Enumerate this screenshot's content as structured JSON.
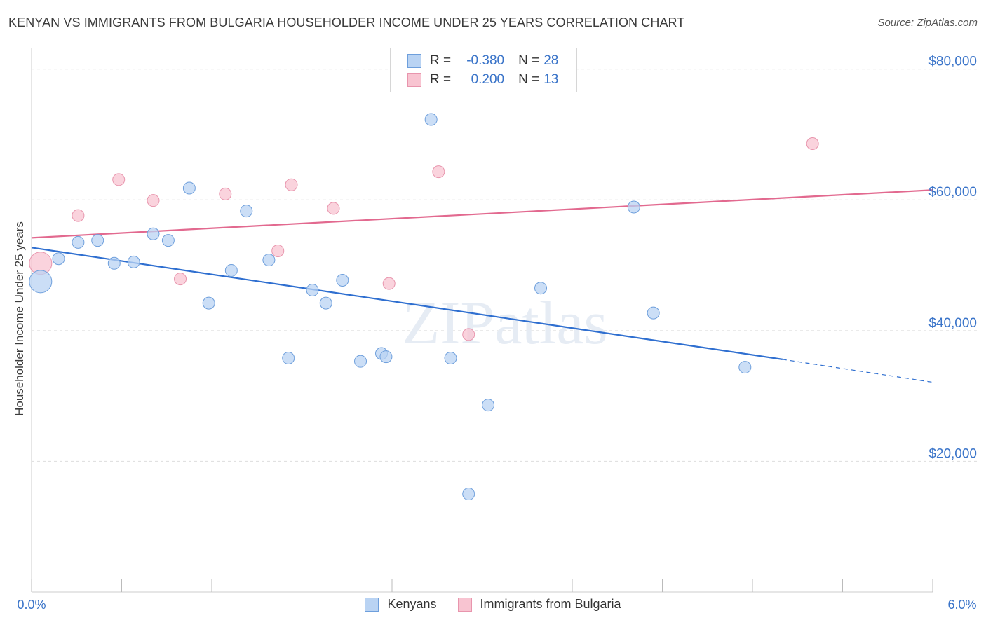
{
  "header": {
    "title": "KENYAN VS IMMIGRANTS FROM BULGARIA HOUSEHOLDER INCOME UNDER 25 YEARS CORRELATION CHART",
    "source": "Source: ZipAtlas.com"
  },
  "legend": {
    "rows": [
      {
        "r_label": "R =",
        "r_value": "-0.380",
        "n_label": "N =",
        "n_value": "28"
      },
      {
        "r_label": "R =",
        "r_value": "0.200",
        "n_label": "N =",
        "n_value": "13"
      }
    ],
    "series_names": [
      "Kenyans",
      "Immigrants from Bulgaria"
    ]
  },
  "colors": {
    "kenyans_fill": "#b9d3f3",
    "kenyans_stroke": "#6e9fdc",
    "kenyans_line": "#2f6fd0",
    "bulgaria_fill": "#f8c4d1",
    "bulgaria_stroke": "#e895ad",
    "bulgaria_line": "#e2698f",
    "axis_text": "#3a74c9",
    "grid": "#dddddd"
  },
  "chart_data": {
    "type": "scatter",
    "title": "KENYAN VS IMMIGRANTS FROM BULGARIA HOUSEHOLDER INCOME UNDER 25 YEARS CORRELATION CHART",
    "xlabel": "",
    "ylabel": "Householder Income Under 25 years",
    "xlim": [
      0,
      6
    ],
    "ylim": [
      0,
      82000
    ],
    "x_tick_labels": [
      "0.0%",
      "6.0%"
    ],
    "y_ticks": [
      20000,
      40000,
      60000,
      80000
    ],
    "y_tick_labels": [
      "$20,000",
      "$40,000",
      "$60,000",
      "$80,000"
    ],
    "watermark": "ZIPatlas",
    "series": [
      {
        "name": "Kenyans",
        "points": [
          {
            "x": 0.06,
            "y": 47500,
            "size": "large"
          },
          {
            "x": 0.18,
            "y": 51000
          },
          {
            "x": 0.31,
            "y": 53500
          },
          {
            "x": 0.44,
            "y": 53800
          },
          {
            "x": 0.55,
            "y": 50300
          },
          {
            "x": 0.68,
            "y": 50500
          },
          {
            "x": 0.81,
            "y": 54800
          },
          {
            "x": 0.91,
            "y": 53800
          },
          {
            "x": 1.05,
            "y": 61800
          },
          {
            "x": 1.18,
            "y": 44200
          },
          {
            "x": 1.33,
            "y": 49200
          },
          {
            "x": 1.43,
            "y": 58300
          },
          {
            "x": 1.58,
            "y": 50800
          },
          {
            "x": 1.71,
            "y": 35800
          },
          {
            "x": 1.87,
            "y": 46200
          },
          {
            "x": 1.96,
            "y": 44200
          },
          {
            "x": 2.07,
            "y": 47700
          },
          {
            "x": 2.19,
            "y": 35300
          },
          {
            "x": 2.33,
            "y": 36500
          },
          {
            "x": 2.36,
            "y": 36000
          },
          {
            "x": 2.66,
            "y": 72300
          },
          {
            "x": 2.79,
            "y": 35800
          },
          {
            "x": 2.91,
            "y": 15000
          },
          {
            "x": 3.04,
            "y": 28600
          },
          {
            "x": 3.39,
            "y": 46500
          },
          {
            "x": 4.01,
            "y": 58900
          },
          {
            "x": 4.14,
            "y": 42700
          },
          {
            "x": 4.75,
            "y": 34400
          }
        ],
        "trend": {
          "x_start": 0.0,
          "y_start": 52700,
          "x_solid_end": 5.0,
          "y_solid_end": 35600,
          "x_end": 6.0,
          "y_end": 32100,
          "dashed_after": 5.0
        }
      },
      {
        "name": "Immigrants from Bulgaria",
        "points": [
          {
            "x": 0.06,
            "y": 50300,
            "size": "large"
          },
          {
            "x": 0.31,
            "y": 57600
          },
          {
            "x": 0.58,
            "y": 63100
          },
          {
            "x": 0.81,
            "y": 59900
          },
          {
            "x": 0.99,
            "y": 47900
          },
          {
            "x": 1.29,
            "y": 60900
          },
          {
            "x": 1.64,
            "y": 52200
          },
          {
            "x": 1.73,
            "y": 62300
          },
          {
            "x": 2.01,
            "y": 58700
          },
          {
            "x": 2.38,
            "y": 47200
          },
          {
            "x": 2.71,
            "y": 64300
          },
          {
            "x": 2.91,
            "y": 39400
          },
          {
            "x": 5.2,
            "y": 68600
          }
        ],
        "trend": {
          "x_start": 0.0,
          "y_start": 54200,
          "x_end": 6.0,
          "y_end": 61500
        }
      }
    ]
  }
}
